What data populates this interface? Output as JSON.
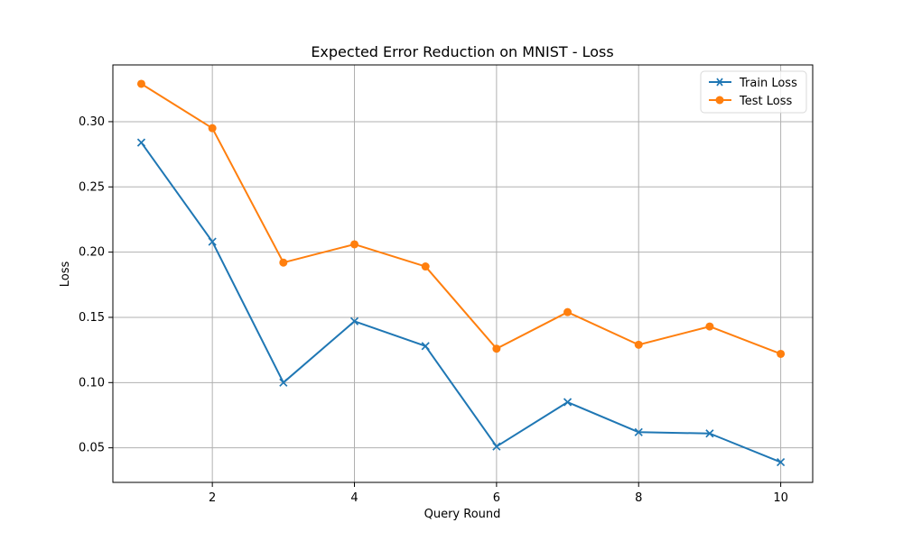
{
  "chart_data": {
    "type": "line",
    "title": "Expected Error Reduction on MNIST - Loss",
    "xlabel": "Query Round",
    "ylabel": "Loss",
    "x": [
      1,
      2,
      3,
      4,
      5,
      6,
      7,
      8,
      9,
      10
    ],
    "xlim": [
      0.6,
      10.45
    ],
    "ylim": [
      0.0235,
      0.3435
    ],
    "xticks": [
      2,
      4,
      6,
      8,
      10
    ],
    "yticks": [
      0.05,
      0.1,
      0.15,
      0.2,
      0.25,
      0.3
    ],
    "xtick_labels": [
      "2",
      "4",
      "6",
      "8",
      "10"
    ],
    "ytick_labels": [
      "0.05",
      "0.10",
      "0.15",
      "0.20",
      "0.25",
      "0.30"
    ],
    "grid": true,
    "legend_position": "upper right",
    "series": [
      {
        "name": "Train Loss",
        "color": "#1f77b4",
        "marker": "x",
        "values": [
          0.284,
          0.208,
          0.1,
          0.147,
          0.128,
          0.051,
          0.085,
          0.062,
          0.061,
          0.039
        ]
      },
      {
        "name": "Test Loss",
        "color": "#ff7f0e",
        "marker": "circle",
        "values": [
          0.329,
          0.295,
          0.192,
          0.206,
          0.189,
          0.126,
          0.154,
          0.129,
          0.143,
          0.122
        ]
      }
    ]
  }
}
